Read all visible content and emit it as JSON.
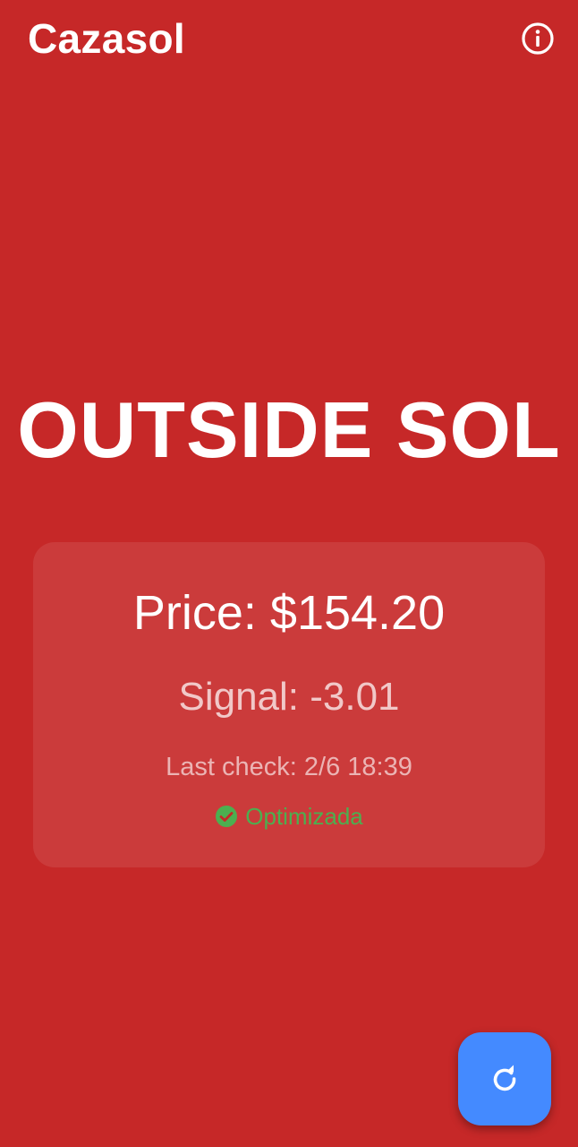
{
  "app_bar": {
    "title": "Cazasol",
    "info_icon": "info-outline-icon"
  },
  "status": {
    "heading": "OUTSIDE SOL",
    "background_color": "#c62828"
  },
  "card": {
    "price": "Price: $154.20",
    "signal": "Signal: -3.01",
    "last_check": "Last check: 2/6 18:39",
    "optimized_label": "Optimizada",
    "optimized_icon": "check-circle-icon",
    "optimized_color": "#4caf50"
  },
  "fab": {
    "icon": "refresh-icon",
    "color": "#448aff"
  }
}
